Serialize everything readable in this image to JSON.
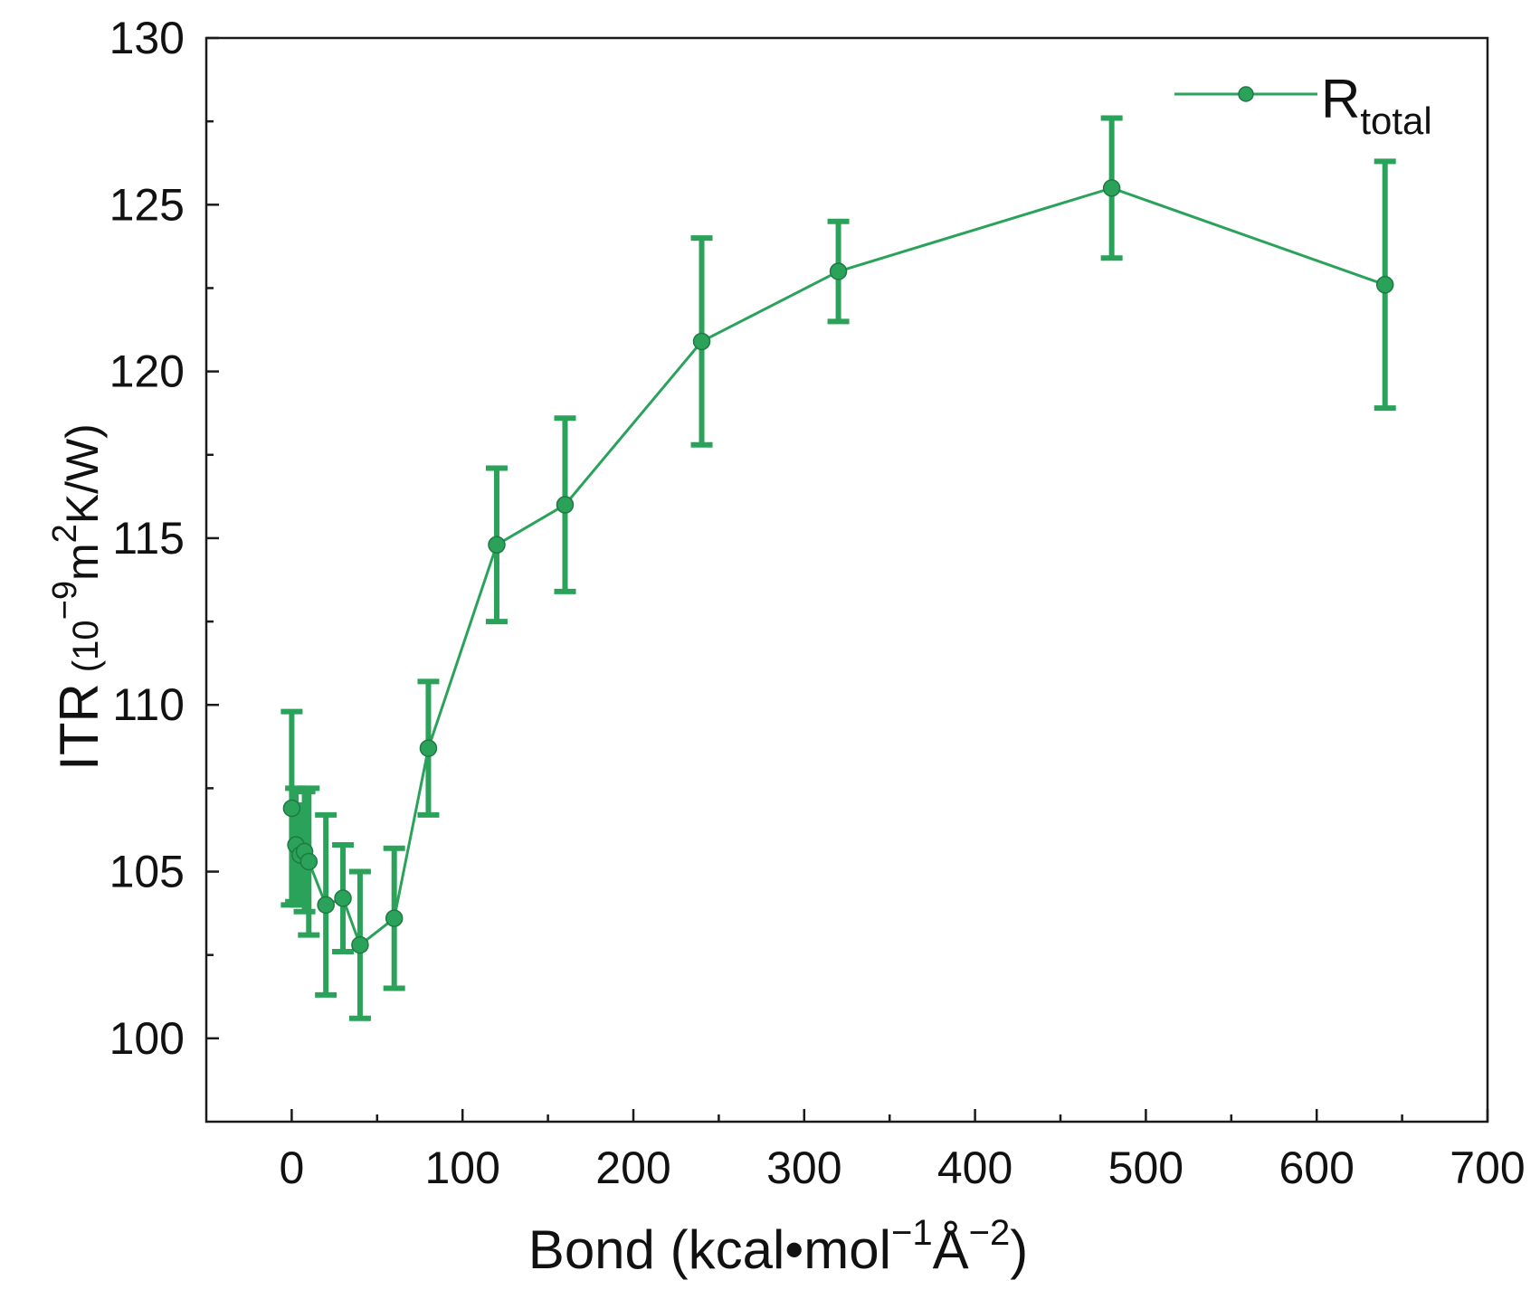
{
  "chart_data": {
    "type": "line",
    "title": "",
    "xlabel": {
      "text": "Bond (kcal•mol",
      "sup1": "−1",
      "unit": "Å",
      "sup2": "−2",
      "close": ")"
    },
    "ylabel": {
      "main": "ITR",
      "unit_open": "(10",
      "sup1": "−9",
      "unit_mid": "m",
      "sup2": "2",
      "unit_close": "K/W)"
    },
    "xlim": [
      -50,
      700
    ],
    "ylim": [
      97.5,
      130
    ],
    "x_ticks": [
      0,
      100,
      200,
      300,
      400,
      500,
      600,
      700
    ],
    "x_minor_ticks": [
      50,
      150,
      250,
      350,
      450,
      550,
      650
    ],
    "y_ticks": [
      100,
      105,
      110,
      115,
      120,
      125,
      130
    ],
    "y_minor_ticks": [
      102.5,
      107.5,
      112.5,
      117.5,
      122.5,
      127.5
    ],
    "grid": false,
    "legend": {
      "position": "top-right",
      "label": "R",
      "label_sub": "total"
    },
    "series": [
      {
        "name": "Rtotal",
        "color": "#2aa25a",
        "x": [
          0,
          2.5,
          5,
          7.5,
          10,
          20,
          30,
          40,
          60,
          80,
          120,
          160,
          240,
          320,
          480,
          640
        ],
        "y": [
          106.9,
          105.8,
          105.5,
          105.6,
          105.3,
          104.0,
          104.2,
          102.8,
          103.6,
          108.7,
          114.8,
          116.0,
          120.9,
          123.0,
          125.5,
          122.6
        ],
        "err": [
          2.9,
          1.7,
          1.5,
          1.8,
          2.2,
          2.7,
          1.6,
          2.2,
          2.1,
          2.0,
          2.3,
          2.6,
          3.1,
          1.5,
          2.1,
          3.7
        ]
      }
    ]
  }
}
